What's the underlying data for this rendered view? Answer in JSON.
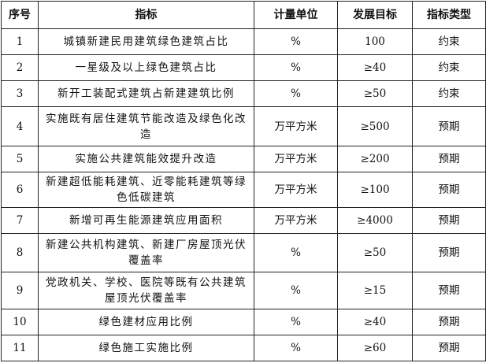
{
  "headers": [
    "序号",
    "指标",
    "计量单位",
    "发展目标",
    "指标类型"
  ],
  "rows": [
    {
      "no": "1",
      "indicator": "城镇新建民用建筑绿色建筑占比",
      "unit": "%",
      "target": "100",
      "type": "约束"
    },
    {
      "no": "2",
      "indicator": "一星级及以上绿色建筑占比",
      "unit": "%",
      "target": "≥40",
      "type": "约束"
    },
    {
      "no": "3",
      "indicator": "新开工装配式建筑占新建建筑比例",
      "unit": "%",
      "target": "≥50",
      "type": "约束"
    },
    {
      "no": "4",
      "indicator": "实施既有居住建筑节能改造及绿色化改造",
      "unit": "万平方米",
      "target": "≥500",
      "type": "预期"
    },
    {
      "no": "5",
      "indicator": "实施公共建筑能效提升改造",
      "unit": "万平方米",
      "target": "≥200",
      "type": "预期"
    },
    {
      "no": "6",
      "indicator": "新建超低能耗建筑、近零能耗建筑等绿色低碳建筑",
      "unit": "万平方米",
      "target": "≥100",
      "type": "预期"
    },
    {
      "no": "7",
      "indicator": "新增可再生能源建筑应用面积",
      "unit": "万平方米",
      "target": "≥4000",
      "type": "预期"
    },
    {
      "no": "8",
      "indicator": "新建公共机构建筑、新建厂房屋顶光伏覆盖率",
      "unit": "%",
      "target": "≥50",
      "type": "预期"
    },
    {
      "no": "9",
      "indicator": "党政机关、学校、医院等既有公共建筑屋顶光伏覆盖率",
      "unit": "%",
      "target": "≥15",
      "type": "预期"
    },
    {
      "no": "10",
      "indicator": "绿色建材应用比例",
      "unit": "%",
      "target": "≥40",
      "type": "预期"
    },
    {
      "no": "11",
      "indicator": "绿色施工实施比例",
      "unit": "%",
      "target": "≥60",
      "type": "预期"
    }
  ]
}
